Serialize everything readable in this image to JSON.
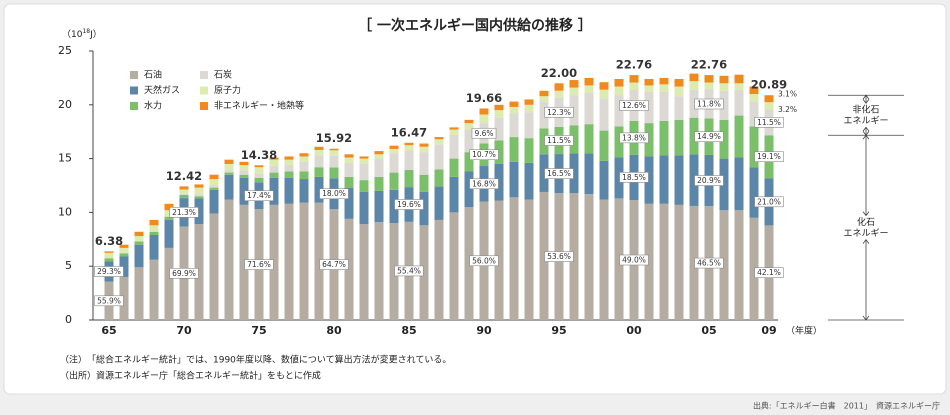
{
  "chart_data": {
    "type": "stacked_bar",
    "title": "［ 一次エネルギー国内供給の推移 ］",
    "ylabel": [
      "（10",
      "18",
      "J）"
    ],
    "xlabel": "（年度）",
    "categories": [
      "65",
      null,
      null,
      null,
      null,
      "70",
      null,
      null,
      null,
      null,
      "75",
      null,
      null,
      null,
      null,
      "80",
      null,
      null,
      null,
      null,
      "85",
      null,
      null,
      null,
      null,
      "90",
      null,
      null,
      null,
      null,
      "95",
      null,
      null,
      null,
      null,
      "00",
      null,
      null,
      null,
      null,
      "05",
      null,
      null,
      null,
      "09"
    ],
    "ylim": [
      0,
      25
    ],
    "yticks": [
      0,
      5,
      10,
      15,
      20,
      25
    ],
    "grid": false,
    "legend": "top-left",
    "series": [
      {
        "name": "石油",
        "color": "#b6ada2",
        "values": [
          3.57,
          4.0,
          4.9,
          5.6,
          6.7,
          8.68,
          8.9,
          9.9,
          11.2,
          10.7,
          10.3,
          10.7,
          10.8,
          10.9,
          10.9,
          10.3,
          9.4,
          8.9,
          9.1,
          9.0,
          9.12,
          8.8,
          9.3,
          10.0,
          10.5,
          11.01,
          11.1,
          11.4,
          11.2,
          11.9,
          11.79,
          11.8,
          11.7,
          11.2,
          11.3,
          11.15,
          10.8,
          10.8,
          10.7,
          10.6,
          10.58,
          10.2,
          10.2,
          9.5,
          8.79
        ],
        "share_labels": [
          "55.9%",
          null,
          null,
          null,
          null,
          "69.9%",
          null,
          null,
          null,
          null,
          "71.6%",
          null,
          null,
          null,
          null,
          "64.7%",
          null,
          null,
          null,
          null,
          "55.4%",
          null,
          null,
          null,
          null,
          "56.0%",
          null,
          null,
          null,
          null,
          "53.6%",
          null,
          null,
          null,
          null,
          "49.0%",
          null,
          null,
          null,
          null,
          "46.5%",
          null,
          null,
          null,
          "42.1%"
        ]
      },
      {
        "name": "天然ガス",
        "color": "#5b86a8",
        "values": [
          1.87,
          1.9,
          2.1,
          2.3,
          2.6,
          2.65,
          2.4,
          2.2,
          2.3,
          2.5,
          2.5,
          2.5,
          2.4,
          2.2,
          2.4,
          2.87,
          2.9,
          3.0,
          2.9,
          3.1,
          3.23,
          3.1,
          3.1,
          3.3,
          3.3,
          3.3,
          3.4,
          3.3,
          3.4,
          3.5,
          3.63,
          3.7,
          3.8,
          3.6,
          3.8,
          4.21,
          4.4,
          4.5,
          4.6,
          4.8,
          4.76,
          4.8,
          4.9,
          4.7,
          4.39
        ],
        "share_labels": [
          "29.3%",
          null,
          null,
          null,
          null,
          "21.3%",
          null,
          null,
          null,
          null,
          "17.4%",
          null,
          null,
          null,
          null,
          "18.0%",
          null,
          null,
          null,
          null,
          "19.6%",
          null,
          null,
          null,
          null,
          "16.8%",
          null,
          null,
          null,
          null,
          "16.5%",
          null,
          null,
          null,
          null,
          "18.5%",
          null,
          null,
          null,
          null,
          "20.9%",
          null,
          null,
          null,
          "21.0%"
        ]
      },
      {
        "name": "水力",
        "color": "#7cbf6a",
        "values": [
          0.3,
          0.3,
          0.3,
          0.3,
          0.3,
          0.3,
          0.2,
          0.2,
          0.2,
          0.3,
          0.4,
          0.5,
          0.6,
          0.7,
          0.9,
          1.0,
          1.0,
          1.1,
          1.3,
          1.6,
          1.6,
          1.6,
          1.6,
          1.7,
          1.8,
          2.1,
          2.2,
          2.3,
          2.3,
          2.4,
          2.53,
          2.6,
          2.7,
          2.8,
          2.9,
          3.14,
          3.1,
          3.2,
          3.3,
          3.4,
          3.39,
          3.6,
          3.9,
          3.8,
          3.99
        ],
        "share_labels": [
          null,
          null,
          null,
          null,
          null,
          null,
          null,
          null,
          null,
          null,
          null,
          null,
          null,
          null,
          null,
          null,
          null,
          null,
          null,
          null,
          null,
          null,
          null,
          null,
          null,
          "10.7%",
          null,
          null,
          null,
          null,
          "11.5%",
          null,
          null,
          null,
          null,
          "13.8%",
          null,
          null,
          null,
          null,
          "14.9%",
          null,
          null,
          null,
          "19.1%"
        ]
      },
      {
        "name": "石炭",
        "color": "#dcd8d3",
        "values": [
          0,
          0,
          0,
          0,
          0,
          0.1,
          0.2,
          0.2,
          0.2,
          0.4,
          0.4,
          0.6,
          0.6,
          0.9,
          1.1,
          1.1,
          1.3,
          1.5,
          1.7,
          1.8,
          1.8,
          2.1,
          2.3,
          2.2,
          2.1,
          1.89,
          2.1,
          2.2,
          2.4,
          2.5,
          2.71,
          2.8,
          2.9,
          3.0,
          2.9,
          2.87,
          2.9,
          2.7,
          2.2,
          2.6,
          2.69,
          2.7,
          2.4,
          2.3,
          2.4
        ],
        "share_labels": [
          null,
          null,
          null,
          null,
          null,
          null,
          null,
          null,
          null,
          null,
          null,
          null,
          null,
          null,
          null,
          null,
          null,
          null,
          null,
          null,
          null,
          null,
          null,
          null,
          null,
          "9.6%",
          null,
          null,
          null,
          null,
          "12.3%",
          null,
          null,
          null,
          null,
          "12.6%",
          null,
          null,
          null,
          null,
          "11.8%",
          null,
          null,
          null,
          "11.5%"
        ]
      },
      {
        "name": "原子力",
        "color": "#dcebb0",
        "values": [
          0.5,
          0.5,
          0.5,
          0.6,
          0.6,
          0.4,
          0.6,
          0.6,
          0.6,
          0.5,
          0.6,
          0.6,
          0.5,
          0.5,
          0.5,
          0.5,
          0.5,
          0.5,
          0.4,
          0.4,
          0.5,
          0.5,
          0.5,
          0.5,
          0.6,
          0.8,
          0.7,
          0.6,
          0.7,
          0.5,
          0.65,
          0.7,
          0.7,
          0.8,
          0.8,
          0.7,
          0.6,
          0.7,
          0.9,
          0.8,
          0.65,
          0.7,
          0.6,
          0.7,
          0.67
        ],
        "share_labels": [
          null,
          null,
          null,
          null,
          null,
          null,
          null,
          null,
          null,
          null,
          null,
          null,
          null,
          null,
          null,
          null,
          null,
          null,
          null,
          null,
          null,
          null,
          null,
          null,
          null,
          null,
          null,
          null,
          null,
          null,
          null,
          null,
          null,
          null,
          null,
          null,
          null,
          null,
          null,
          null,
          null,
          null,
          null,
          null,
          "3.2%"
        ]
      },
      {
        "name": "非エネルギー・地熱等",
        "color": "#f08a1c",
        "values": [
          0.14,
          0.3,
          0.4,
          0.5,
          0.6,
          0.29,
          0.3,
          0.4,
          0.4,
          0.3,
          0.18,
          0.2,
          0.3,
          0.3,
          0.3,
          0.15,
          0.3,
          0.2,
          0.3,
          0.3,
          0.22,
          0.3,
          0.2,
          0.2,
          0.3,
          0.56,
          0.5,
          0.5,
          0.5,
          0.5,
          0.69,
          0.7,
          0.7,
          0.7,
          0.7,
          0.69,
          0.6,
          0.6,
          0.7,
          0.7,
          0.69,
          0.7,
          0.8,
          0.7,
          0.65
        ],
        "share_labels": [
          null,
          null,
          null,
          null,
          null,
          null,
          null,
          null,
          null,
          null,
          null,
          null,
          null,
          null,
          null,
          null,
          null,
          null,
          null,
          null,
          null,
          null,
          null,
          null,
          null,
          null,
          null,
          null,
          null,
          null,
          null,
          null,
          null,
          null,
          null,
          null,
          null,
          null,
          null,
          null,
          null,
          null,
          null,
          null,
          "3.1%"
        ]
      }
    ],
    "total_labels": [
      "6.38",
      null,
      null,
      null,
      null,
      "12.42",
      null,
      null,
      null,
      null,
      "14.38",
      null,
      null,
      null,
      null,
      "15.92",
      null,
      null,
      null,
      null,
      "16.47",
      null,
      null,
      null,
      null,
      "19.66",
      null,
      null,
      null,
      null,
      "22.00",
      null,
      null,
      null,
      null,
      "22.76",
      null,
      null,
      null,
      null,
      "22.76",
      null,
      null,
      null,
      "20.89"
    ],
    "brace_labels": {
      "non_fossil": [
        "非化石",
        "エネルギー"
      ],
      "fossil": [
        "化石",
        "エネルギー"
      ]
    },
    "notes": [
      "（注）　「総合エネルギー統計」では、1990年度以降、数値について算出方法が変更されている。",
      "（出所）資源エネルギー庁「総合エネルギー統計」をもとに作成"
    ],
    "source": "出典:「エネルギー白書　2011」　資源エネルギー庁"
  }
}
